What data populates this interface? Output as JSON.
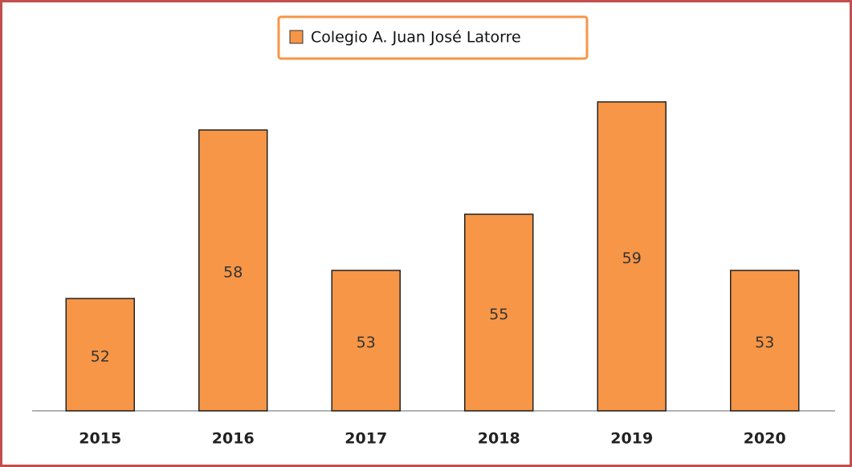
{
  "chart_data": {
    "type": "bar",
    "series": [
      {
        "name": "Colegio A. Juan José Latorre",
        "color": "#f79646",
        "values": [
          52,
          58,
          53,
          55,
          59,
          53
        ]
      }
    ],
    "categories": [
      "2015",
      "2016",
      "2017",
      "2018",
      "2019",
      "2020"
    ],
    "ylim": [
      48,
      60
    ],
    "legend": "top"
  }
}
